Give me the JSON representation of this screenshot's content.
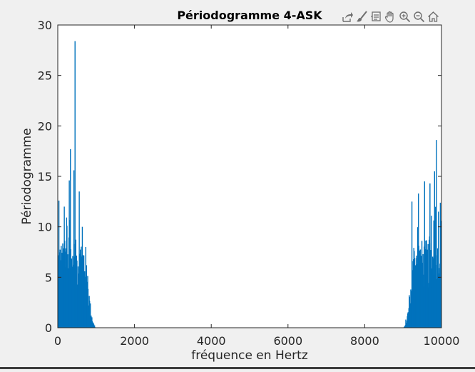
{
  "toolbar": {
    "icons": [
      "export-icon",
      "brush-icon",
      "data-tips-icon",
      "pan-hand-icon",
      "zoom-in-icon",
      "zoom-out-icon",
      "home-icon"
    ]
  },
  "chart_data": {
    "type": "bar",
    "title": "Périodogramme 4-ASK",
    "xlabel": "fréquence en Hertz",
    "ylabel": "Périodogramme",
    "xlim": [
      0,
      10000
    ],
    "ylim": [
      0,
      30
    ],
    "xticks": [
      "0",
      "2000",
      "4000",
      "6000",
      "8000",
      "10000"
    ],
    "yticks": [
      "0",
      "5",
      "10",
      "15",
      "20",
      "25",
      "30"
    ],
    "grid": false,
    "bar_color": "#0072bd",
    "peaks": [
      {
        "x": 30,
        "y": 12.6
      },
      {
        "x": 170,
        "y": 12.0
      },
      {
        "x": 300,
        "y": 14.6
      },
      {
        "x": 330,
        "y": 17.7
      },
      {
        "x": 450,
        "y": 28.4
      },
      {
        "x": 420,
        "y": 15.6
      },
      {
        "x": 560,
        "y": 13.5
      },
      {
        "x": 640,
        "y": 10.0
      },
      {
        "x": 9230,
        "y": 12.5
      },
      {
        "x": 9400,
        "y": 13.3
      },
      {
        "x": 9560,
        "y": 14.5
      },
      {
        "x": 9700,
        "y": 14.3
      },
      {
        "x": 9820,
        "y": 15.5
      },
      {
        "x": 9870,
        "y": 18.6
      },
      {
        "x": 9920,
        "y": 11.5
      },
      {
        "x": 9990,
        "y": 10.6
      }
    ],
    "low_band": {
      "start": 0,
      "end": 1000,
      "typical_level": 7
    },
    "high_band": {
      "start": 9000,
      "end": 10000,
      "typical_level": 7
    }
  }
}
